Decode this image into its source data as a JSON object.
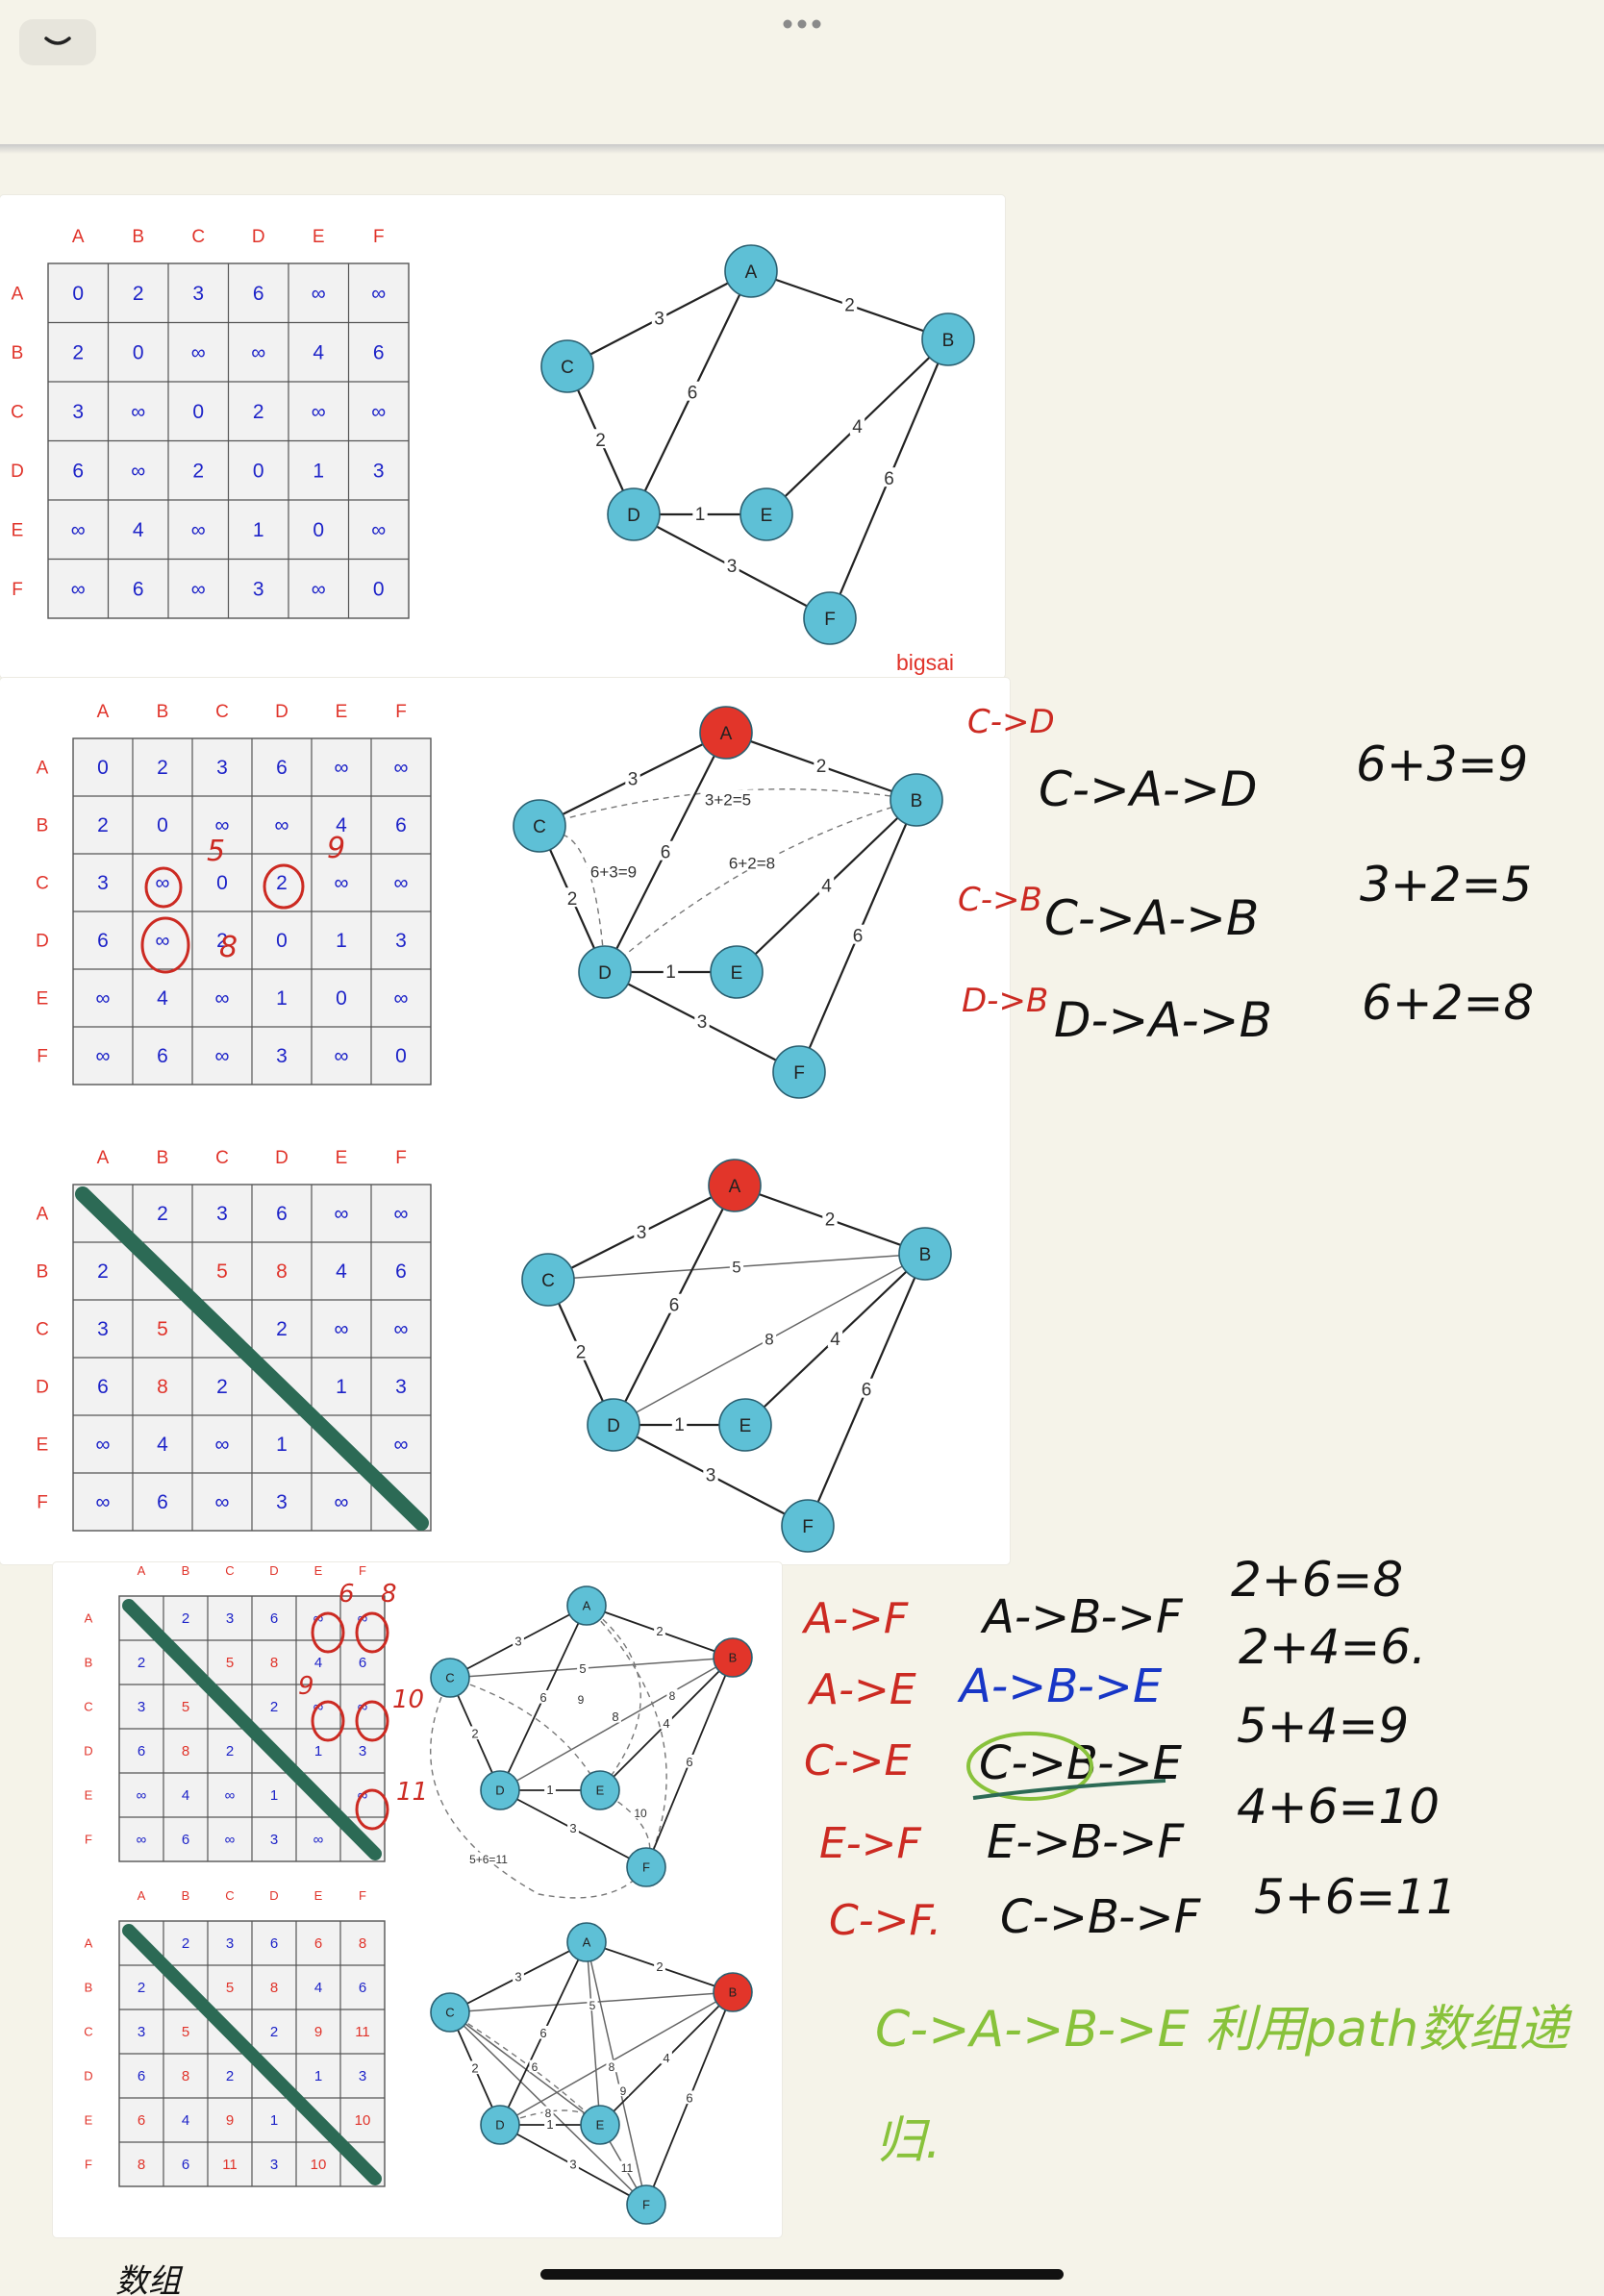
{
  "app": {
    "collapse_icon": "chevron-down-icon",
    "more_icon": "more-dots-icon"
  },
  "colors": {
    "header_red": "#e0332a",
    "cell_blue": "#1d23c8",
    "cell_red": "#e0332a",
    "node_fill": "#5ec0d6",
    "node_active": "#e2352a",
    "diag_green": "#2c6a55",
    "ink_black": "#111111",
    "ink_red": "#cc2a22",
    "ink_green": "#88c23b",
    "ink_blue": "#1736c6"
  },
  "headers": [
    "A",
    "B",
    "C",
    "D",
    "E",
    "F"
  ],
  "figures": [
    {
      "matrix": [
        [
          "0",
          "2",
          "3",
          "6",
          "∞",
          "∞"
        ],
        [
          "2",
          "0",
          "∞",
          "∞",
          "4",
          "6"
        ],
        [
          "3",
          "∞",
          "0",
          "2",
          "∞",
          "∞"
        ],
        [
          "6",
          "∞",
          "2",
          "0",
          "1",
          "3"
        ],
        [
          "∞",
          "4",
          "∞",
          "1",
          "0",
          "∞"
        ],
        [
          "∞",
          "6",
          "∞",
          "3",
          "∞",
          "0"
        ]
      ],
      "red_cells": [],
      "watermark": "bigsai",
      "graph_active": [],
      "edge_labels": [
        "3",
        "2",
        "6",
        "2",
        "4",
        "6",
        "1",
        "3"
      ],
      "dashed_labels": []
    },
    {
      "matrix": [
        [
          "0",
          "2",
          "3",
          "6",
          "∞",
          "∞"
        ],
        [
          "2",
          "0",
          "∞",
          "∞",
          "4",
          "6"
        ],
        [
          "3",
          "∞",
          "0",
          "2",
          "∞",
          "∞"
        ],
        [
          "6",
          "∞",
          "2",
          "0",
          "1",
          "3"
        ],
        [
          "∞",
          "4",
          "∞",
          "1",
          "0",
          "∞"
        ],
        [
          "∞",
          "6",
          "∞",
          "3",
          "∞",
          "0"
        ]
      ],
      "red_cells": [],
      "graph_active": [
        "A"
      ],
      "edge_labels": [
        "3",
        "2",
        "6",
        "2",
        "4",
        "6",
        "1",
        "3"
      ],
      "dashed_labels": [
        "3+2=5",
        "6+3=9",
        "6+2=8"
      ]
    },
    {
      "matrix": [
        [
          "0",
          "2",
          "3",
          "6",
          "∞",
          "∞"
        ],
        [
          "2",
          "0",
          "5",
          "8",
          "4",
          "6"
        ],
        [
          "3",
          "5",
          "0",
          "2",
          "∞",
          "∞"
        ],
        [
          "6",
          "8",
          "2",
          "0",
          "1",
          "3"
        ],
        [
          "∞",
          "4",
          "∞",
          "1",
          "0",
          "∞"
        ],
        [
          "∞",
          "6",
          "∞",
          "3",
          "∞",
          "0"
        ]
      ],
      "red_cells": [
        "1-2",
        "1-3",
        "2-1",
        "3-1"
      ],
      "graph_active": [
        "A"
      ],
      "edge_labels": [
        "3",
        "2",
        "6",
        "2",
        "4",
        "6",
        "1",
        "3"
      ],
      "solid_extra_labels": [
        "5",
        "8"
      ]
    },
    {
      "matrix": [
        [
          "0",
          "2",
          "3",
          "6",
          "∞",
          "∞"
        ],
        [
          "2",
          "0",
          "5",
          "8",
          "4",
          "6"
        ],
        [
          "3",
          "5",
          "0",
          "2",
          "∞",
          "∞"
        ],
        [
          "6",
          "8",
          "2",
          "0",
          "1",
          "3"
        ],
        [
          "∞",
          "4",
          "∞",
          "1",
          "0",
          "∞"
        ],
        [
          "∞",
          "6",
          "∞",
          "3",
          "∞",
          "0"
        ]
      ],
      "red_cells": [
        "1-2",
        "1-3",
        "2-1",
        "3-1"
      ],
      "graph_active": [
        "B"
      ],
      "edge_labels": [
        "3",
        "2",
        "6",
        "2",
        "4",
        "6",
        "1",
        "3"
      ],
      "solid_extra_labels": [
        "5",
        "8"
      ],
      "dashed_labels": [
        "9",
        "8",
        "10",
        "5+6=11"
      ]
    },
    {
      "matrix": [
        [
          "0",
          "2",
          "3",
          "6",
          "6",
          "8"
        ],
        [
          "2",
          "0",
          "5",
          "8",
          "4",
          "6"
        ],
        [
          "3",
          "5",
          "0",
          "2",
          "9",
          "11"
        ],
        [
          "6",
          "8",
          "2",
          "0",
          "1",
          "3"
        ],
        [
          "6",
          "4",
          "9",
          "1",
          "0",
          "10"
        ],
        [
          "8",
          "6",
          "11",
          "3",
          "10",
          "0"
        ]
      ],
      "red_cells": [
        "0-4",
        "0-5",
        "1-2",
        "1-3",
        "2-1",
        "3-1",
        "2-4",
        "2-5",
        "4-0",
        "4-2",
        "4-5",
        "5-0",
        "5-2",
        "5-4"
      ],
      "graph_active": [
        "B"
      ],
      "edge_labels": [
        "3",
        "2",
        "6",
        "2",
        "4",
        "6",
        "1",
        "3"
      ],
      "solid_extra_labels": [
        "5",
        "8",
        "6",
        "9",
        "8",
        "11",
        "10"
      ]
    }
  ],
  "annotations": {
    "s2_left": [
      "C->D",
      "C->B",
      "D->B"
    ],
    "s2_paths": [
      "C->A->D",
      "C->A->B",
      "D->A->B"
    ],
    "s2_sums": [
      "6+3=9",
      "3+2=5",
      "6+2=8"
    ],
    "s2_cell_notes": [
      "5",
      "9",
      "8"
    ],
    "s4_left": [
      "A->F",
      "A->E",
      "C->E",
      "E->F",
      "C->F."
    ],
    "s4_paths": [
      "A->B->F",
      "A->B->E",
      "C->B->E",
      "E->B->F",
      "C->B->F"
    ],
    "s4_sums": [
      "2+6=8",
      "2+4=6.",
      "5+4=9",
      "4+6=10",
      "5+6=11"
    ],
    "s4_cell_notes": [
      "6",
      "8",
      "9",
      "10",
      "11"
    ],
    "green_note_1": "C->A->B->E 利用path数组递",
    "green_note_2": "归.",
    "bottom_partial": "数组"
  }
}
